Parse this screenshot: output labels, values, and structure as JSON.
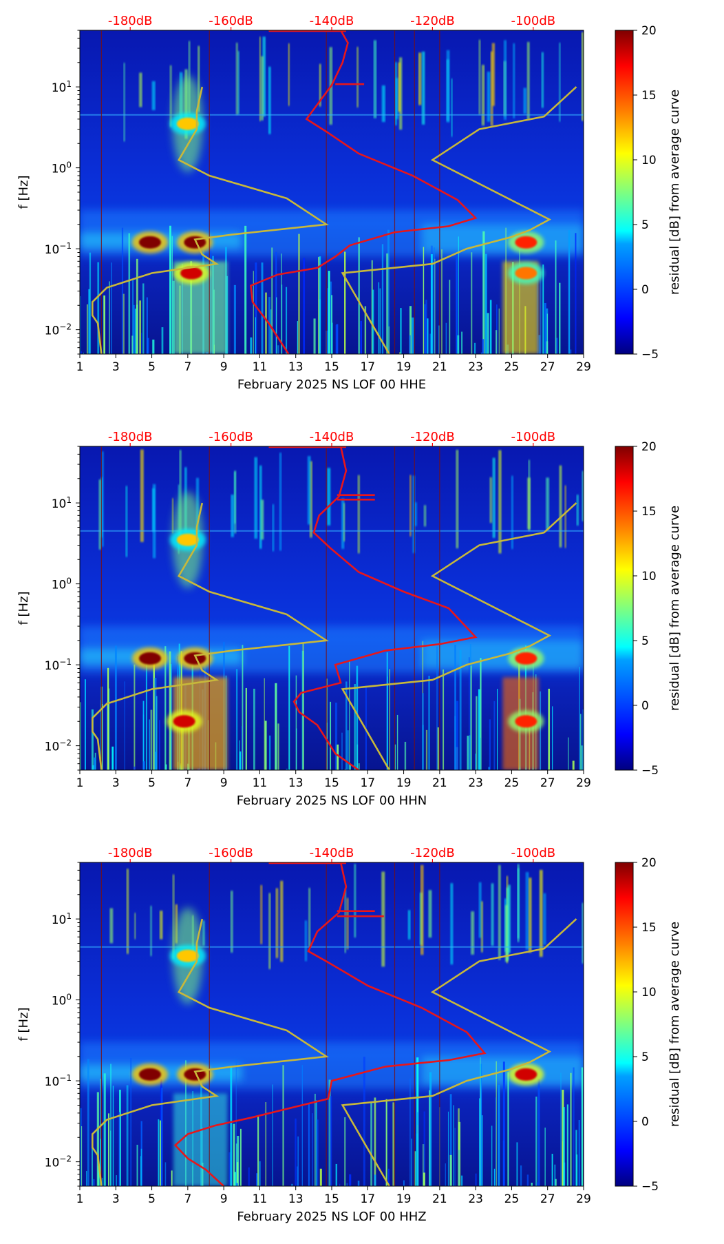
{
  "colorbar": {
    "label": "residual [dB] from average curve",
    "min": -5,
    "max": 20,
    "ticks": [
      -5,
      0,
      5,
      10,
      15,
      20
    ]
  },
  "palette": {
    "jet": [
      "#00007f",
      "#0000ff",
      "#007fff",
      "#00ffff",
      "#7fff7f",
      "#ffff00",
      "#ff7f00",
      "#ff0000",
      "#7f0000"
    ],
    "red_curve": "#e8161a",
    "yellow_curve": "#c8b83a",
    "top_axis_text": "#ff0000"
  },
  "chart_data": [
    {
      "type": "heatmap",
      "xlabel": "February 2025 NS LOF 00 HHE",
      "ylabel": "f [Hz]",
      "xlim": [
        1,
        29
      ],
      "xticks": [
        "1",
        "3",
        "5",
        "7",
        "9",
        "11",
        "13",
        "15",
        "17",
        "19",
        "21",
        "23",
        "25",
        "27",
        "29"
      ],
      "ylim": [
        0.005,
        50
      ],
      "yscale": "log",
      "yticks": [
        {
          "value": 0.01,
          "label": "10^-2"
        },
        {
          "value": 0.1,
          "label": "10^-1"
        },
        {
          "value": 1,
          "label": "10^0"
        },
        {
          "value": 10,
          "label": "10^1"
        }
      ],
      "top_axis": {
        "labels": [
          "-180dB",
          "-160dB",
          "-140dB",
          "-120dB",
          "-100dB"
        ],
        "positions": [
          3.8,
          9.4,
          15.0,
          20.6,
          26.2
        ]
      },
      "red_curve": [
        [
          12.6,
          0.005
        ],
        [
          11.5,
          0.012
        ],
        [
          10.6,
          0.022
        ],
        [
          10.5,
          0.035
        ],
        [
          12.0,
          0.048
        ],
        [
          14.2,
          0.058
        ],
        [
          15.2,
          0.08
        ],
        [
          16.0,
          0.11
        ],
        [
          18.5,
          0.16
        ],
        [
          21.5,
          0.19
        ],
        [
          23.0,
          0.24
        ],
        [
          22.0,
          0.4
        ],
        [
          19.5,
          0.8
        ],
        [
          16.5,
          1.5
        ],
        [
          14.7,
          2.8
        ],
        [
          13.6,
          4.0
        ],
        [
          14.3,
          6.5
        ],
        [
          15.0,
          10.5
        ],
        [
          15.6,
          20
        ],
        [
          15.9,
          35
        ],
        [
          15.5,
          50
        ]
      ],
      "red_extras": [
        [
          [
            16.8,
            10.8
          ],
          [
            15.2,
            10.8
          ]
        ],
        [
          [
            11.5,
            49
          ],
          [
            15.8,
            49
          ]
        ]
      ],
      "hidden_structure_note": "",
      "hot_spots": [
        {
          "day": 4.9,
          "freq": 0.12,
          "level": 20
        },
        {
          "day": 7.4,
          "freq": 0.12,
          "level": 20
        },
        {
          "day": 7.0,
          "freq": 3.5,
          "level": 12
        },
        {
          "day": 7.2,
          "freq": 0.05,
          "level": 18
        },
        {
          "day": 25.8,
          "freq": 0.12,
          "level": 16
        },
        {
          "day": 25.8,
          "freq": 0.05,
          "level": 14
        }
      ]
    },
    {
      "type": "heatmap",
      "xlabel": "February 2025 NS LOF 00 HHN",
      "ylabel": "f [Hz]",
      "xlim": [
        1,
        29
      ],
      "xticks": [
        "1",
        "3",
        "5",
        "7",
        "9",
        "11",
        "13",
        "15",
        "17",
        "19",
        "21",
        "23",
        "25",
        "27",
        "29"
      ],
      "ylim": [
        0.005,
        50
      ],
      "yscale": "log",
      "yticks": [
        {
          "value": 0.01,
          "label": "10^-2"
        },
        {
          "value": 0.1,
          "label": "10^-1"
        },
        {
          "value": 1,
          "label": "10^0"
        },
        {
          "value": 10,
          "label": "10^1"
        }
      ],
      "top_axis": {
        "labels": [
          "-180dB",
          "-160dB",
          "-140dB",
          "-120dB",
          "-100dB"
        ],
        "positions": [
          3.8,
          9.4,
          15.0,
          20.6,
          26.2
        ]
      },
      "red_curve": [
        [
          16.5,
          0.005
        ],
        [
          15.2,
          0.008
        ],
        [
          14.2,
          0.018
        ],
        [
          13.2,
          0.026
        ],
        [
          12.9,
          0.035
        ],
        [
          13.3,
          0.045
        ],
        [
          15.5,
          0.06
        ],
        [
          15.2,
          0.1
        ],
        [
          18.0,
          0.15
        ],
        [
          21.0,
          0.18
        ],
        [
          23.0,
          0.22
        ],
        [
          21.5,
          0.5
        ],
        [
          19.0,
          0.8
        ],
        [
          16.5,
          1.4
        ],
        [
          14.9,
          2.8
        ],
        [
          14.0,
          4.3
        ],
        [
          14.3,
          7.0
        ],
        [
          15.4,
          12
        ],
        [
          15.8,
          25
        ],
        [
          15.5,
          50
        ]
      ],
      "red_extras": [
        [
          [
            17.4,
            12.5
          ],
          [
            15.3,
            12.5
          ]
        ],
        [
          [
            17.4,
            11.0
          ],
          [
            15.3,
            11.0
          ]
        ],
        [
          [
            11.5,
            49
          ],
          [
            15.8,
            49
          ]
        ]
      ],
      "hot_spots": [
        {
          "day": 4.9,
          "freq": 0.12,
          "level": 20
        },
        {
          "day": 7.4,
          "freq": 0.12,
          "level": 20
        },
        {
          "day": 7.0,
          "freq": 3.5,
          "level": 12
        },
        {
          "day": 6.8,
          "freq": 0.02,
          "level": 18
        },
        {
          "day": 25.8,
          "freq": 0.12,
          "level": 16
        },
        {
          "day": 25.8,
          "freq": 0.02,
          "level": 16
        }
      ]
    },
    {
      "type": "heatmap",
      "xlabel": "February 2025 NS LOF 00 HHZ",
      "ylabel": "f [Hz]",
      "xlim": [
        1,
        29
      ],
      "xticks": [
        "1",
        "3",
        "5",
        "7",
        "9",
        "11",
        "13",
        "15",
        "17",
        "19",
        "21",
        "23",
        "25",
        "27",
        "29"
      ],
      "ylim": [
        0.005,
        50
      ],
      "yscale": "log",
      "yticks": [
        {
          "value": 0.01,
          "label": "10^-2"
        },
        {
          "value": 0.1,
          "label": "10^-1"
        },
        {
          "value": 1,
          "label": "10^0"
        },
        {
          "value": 10,
          "label": "10^1"
        }
      ],
      "top_axis": {
        "labels": [
          "-180dB",
          "-160dB",
          "-140dB",
          "-120dB",
          "-100dB"
        ],
        "positions": [
          3.8,
          9.4,
          15.0,
          20.6,
          26.2
        ]
      },
      "red_curve": [
        [
          9.0,
          0.005
        ],
        [
          8.0,
          0.008
        ],
        [
          7.0,
          0.011
        ],
        [
          6.3,
          0.016
        ],
        [
          7.0,
          0.022
        ],
        [
          8.5,
          0.028
        ],
        [
          10.5,
          0.035
        ],
        [
          12.5,
          0.045
        ],
        [
          14.8,
          0.06
        ],
        [
          15.0,
          0.1
        ],
        [
          18.0,
          0.15
        ],
        [
          21.5,
          0.18
        ],
        [
          23.5,
          0.22
        ],
        [
          22.5,
          0.4
        ],
        [
          20.0,
          0.8
        ],
        [
          17.0,
          1.5
        ],
        [
          14.7,
          3.0
        ],
        [
          13.7,
          4.0
        ],
        [
          14.2,
          7.0
        ],
        [
          15.4,
          12
        ],
        [
          15.8,
          25
        ],
        [
          15.5,
          50
        ]
      ],
      "red_extras": [
        [
          [
            17.4,
            12.5
          ],
          [
            15.3,
            12.5
          ]
        ],
        [
          [
            17.9,
            10.8
          ],
          [
            15.3,
            10.8
          ]
        ],
        [
          [
            11.5,
            49
          ],
          [
            15.8,
            49
          ]
        ]
      ],
      "hot_spots": [
        {
          "day": 4.9,
          "freq": 0.12,
          "level": 20
        },
        {
          "day": 7.4,
          "freq": 0.12,
          "level": 20
        },
        {
          "day": 7.0,
          "freq": 3.5,
          "level": 12
        },
        {
          "day": 25.8,
          "freq": 0.12,
          "level": 18
        }
      ]
    }
  ],
  "yellow_curve_shared": [
    [
      2.2,
      0.005
    ],
    [
      2.0,
      0.012
    ],
    [
      1.7,
      0.015
    ],
    [
      1.7,
      0.022
    ],
    [
      2.5,
      0.033
    ],
    [
      5.0,
      0.05
    ],
    [
      8.6,
      0.065
    ],
    [
      7.8,
      0.085
    ],
    [
      7.4,
      0.13
    ],
    [
      9.5,
      0.15
    ],
    [
      14.7,
      0.2
    ],
    [
      12.5,
      0.42
    ],
    [
      8.2,
      0.8
    ],
    [
      6.5,
      1.25
    ],
    [
      7.5,
      3.0
    ],
    [
      7.5,
      5.0
    ],
    [
      7.8,
      10.0
    ]
  ],
  "yellow_curve_right": [
    [
      18.2,
      0.005
    ],
    [
      15.6,
      0.05
    ],
    [
      20.6,
      0.065
    ],
    [
      22.5,
      0.1
    ],
    [
      25.0,
      0.14
    ],
    [
      26.0,
      0.17
    ],
    [
      27.1,
      0.23
    ],
    [
      20.6,
      1.25
    ],
    [
      23.2,
      3.0
    ],
    [
      26.8,
      4.3
    ],
    [
      28.6,
      10.0
    ]
  ]
}
